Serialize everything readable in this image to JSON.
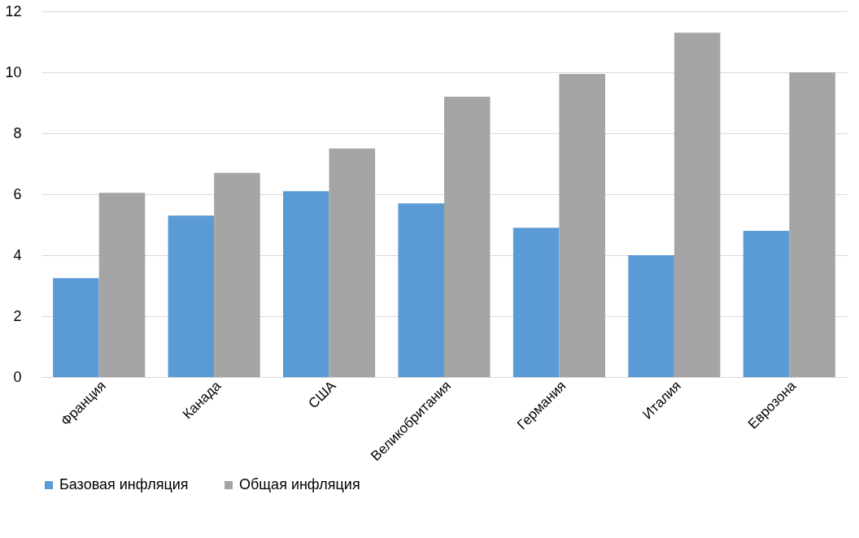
{
  "chart_data": {
    "type": "bar",
    "categories": [
      "Франция",
      "Канада",
      "США",
      "Великобритания",
      "Германия",
      "Италия",
      "Еврозона"
    ],
    "series": [
      {
        "name": "Базовая инфляция",
        "color": "#5b9bd5",
        "values": [
          3.25,
          5.3,
          6.1,
          5.7,
          4.9,
          4.0,
          4.8
        ]
      },
      {
        "name": "Общая инфляция",
        "color": "#a5a5a5",
        "values": [
          6.05,
          6.7,
          7.5,
          9.2,
          9.95,
          11.3,
          10.0
        ]
      }
    ],
    "ylim": [
      0,
      12
    ],
    "yticks": [
      0,
      2,
      4,
      6,
      8,
      10,
      12
    ],
    "grid": "y",
    "legend": "bottom"
  }
}
